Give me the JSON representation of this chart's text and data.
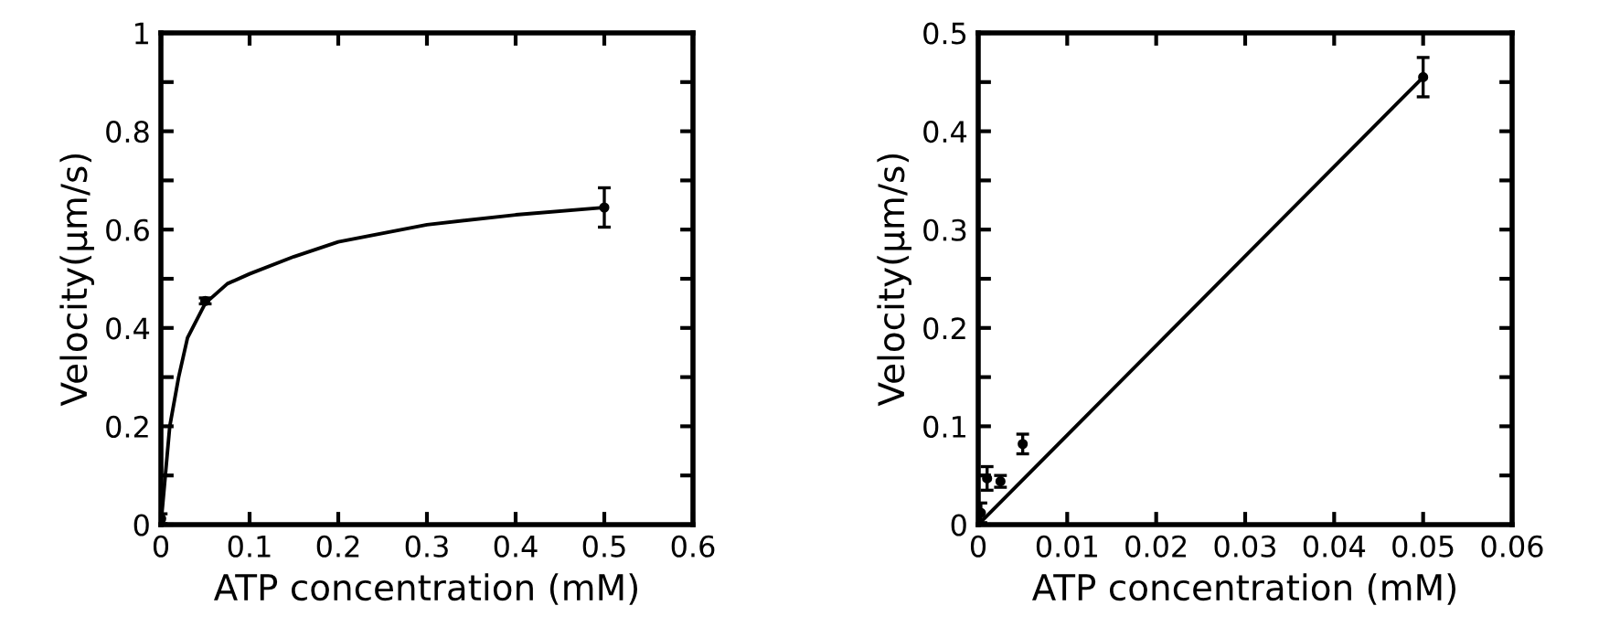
{
  "chart_data": [
    {
      "type": "scatter",
      "xlabel": "ATP concentration (mM)",
      "ylabel": "Velocity(μm/s)",
      "xlim": [
        0,
        0.6
      ],
      "ylim": [
        0,
        1
      ],
      "xticks": [
        0,
        0.1,
        0.2,
        0.3,
        0.4,
        0.5,
        0.6
      ],
      "yticks": [
        0,
        {
          "value": 0.1,
          "label": null
        },
        0.2,
        {
          "value": 0.3,
          "label": null
        },
        0.4,
        {
          "value": 0.5,
          "label": null
        },
        0.6,
        {
          "value": 0.7,
          "label": null
        },
        0.8,
        {
          "value": 0.9,
          "label": null
        },
        1
      ],
      "grid": false,
      "legend": false,
      "series": [
        {
          "color": "#000000",
          "marker": "circle",
          "x": [
            0.0003,
            0.001,
            0.0025,
            0.005,
            0.05,
            0.5
          ],
          "values": [
            0.012,
            null,
            null,
            null,
            0.455,
            0.645
          ],
          "errors": [
            0.01,
            null,
            null,
            null,
            0.006,
            0.04
          ]
        },
        {
          "type": "line",
          "color": "#000000",
          "marker": "none",
          "line_style": "solid",
          "x": [
            0,
            0.005,
            0.01,
            0.02,
            0.03,
            0.05,
            0.075,
            0.1,
            0.15,
            0.2,
            0.3,
            0.4,
            0.5
          ],
          "values": [
            0,
            0.1,
            0.2,
            0.3,
            0.38,
            0.45,
            0.49,
            0.51,
            0.545,
            0.575,
            0.61,
            0.63,
            0.645
          ]
        }
      ]
    },
    {
      "type": "scatter",
      "xlabel": "ATP concentration (mM)",
      "ylabel": "Velocity(μm/s)",
      "xlim": [
        0,
        0.06
      ],
      "ylim": [
        0,
        0.5
      ],
      "xticks": [
        0,
        0.01,
        0.02,
        0.03,
        0.04,
        0.05,
        0.06
      ],
      "yticks": [
        0,
        {
          "value": 0.05,
          "label": null
        },
        0.1,
        {
          "value": 0.15,
          "label": null
        },
        0.2,
        {
          "value": 0.25,
          "label": null
        },
        0.3,
        {
          "value": 0.35,
          "label": null
        },
        0.4,
        {
          "value": 0.45,
          "label": null
        },
        0.5
      ],
      "grid": false,
      "legend": false,
      "series": [
        {
          "color": "#000000",
          "marker": "circle",
          "x": [
            0.0003,
            0.001,
            0.0025,
            0.005,
            0.05
          ],
          "values": [
            0.012,
            0.047,
            0.044,
            0.082,
            0.455
          ],
          "errors": [
            0.01,
            0.012,
            0.006,
            0.01,
            0.02
          ]
        },
        {
          "type": "line",
          "color": "#000000",
          "marker": "none",
          "line_style": "solid",
          "x": [
            0,
            0.05
          ],
          "values": [
            0,
            0.455
          ]
        }
      ]
    }
  ]
}
